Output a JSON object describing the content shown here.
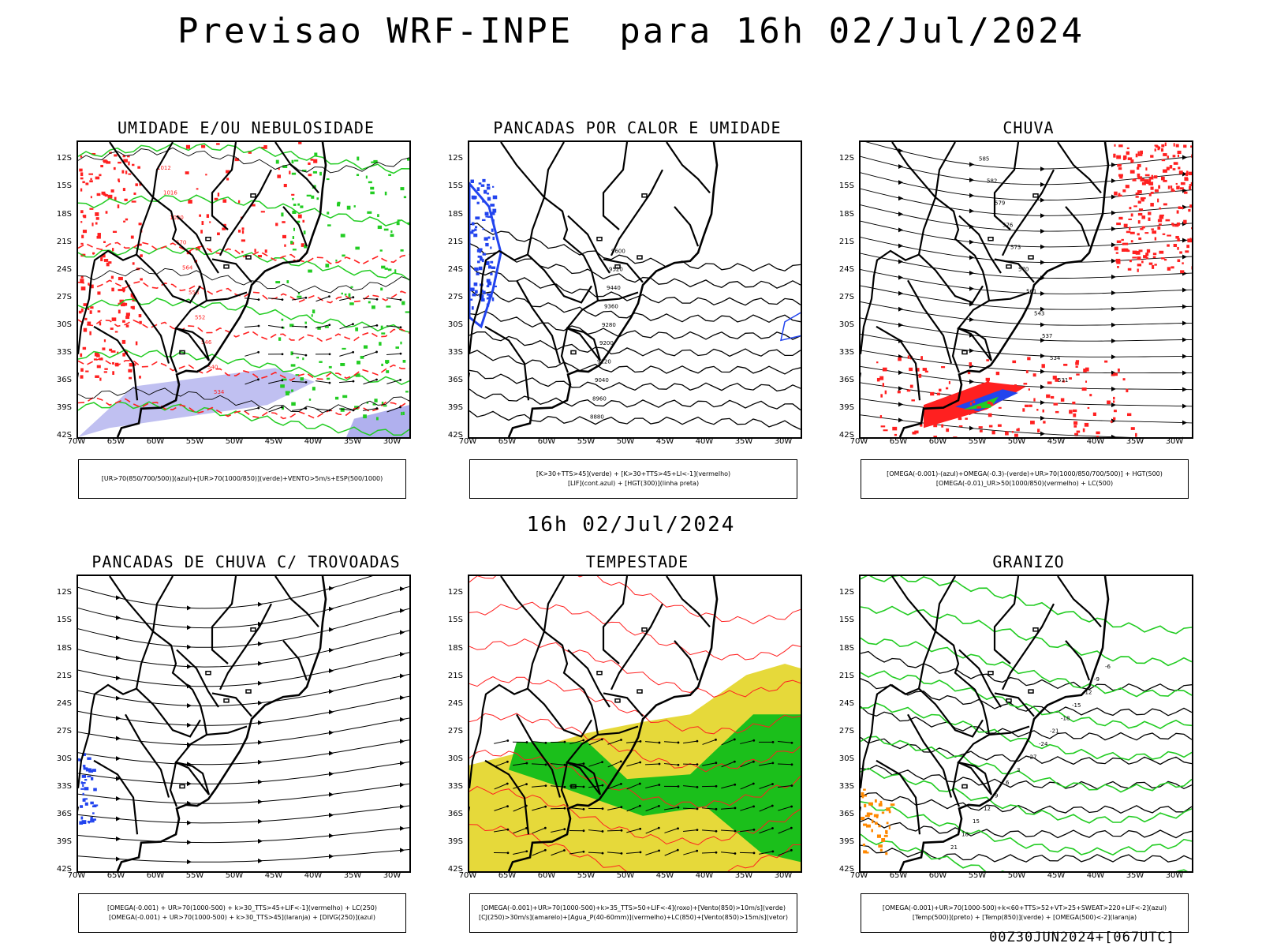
{
  "header": {
    "title": "Previsao WRF-INPE  para 16h 02/Jul/2024"
  },
  "middle": {
    "title": "16h 02/Jul/2024"
  },
  "footer": {
    "run": "00Z30JUN2024+[067UTC]"
  },
  "axes": {
    "lat": [
      "12S",
      "15S",
      "18S",
      "21S",
      "24S",
      "27S",
      "30S",
      "33S",
      "36S",
      "39S",
      "42S"
    ],
    "lon": [
      "70W",
      "65W",
      "60W",
      "55W",
      "50W",
      "45W",
      "40W",
      "35W",
      "30W"
    ]
  },
  "colors": {
    "red": "#ff2020",
    "green": "#22cc22",
    "blue": "#2244ee",
    "yellow": "#e6d93a",
    "orange": "#ff8800",
    "lavender": "#b0b0ee"
  },
  "panels": [
    {
      "title": "UMIDADE E/OU NEBULOSIDADE",
      "legend": [
        "[UR>70(850/700/500)](azul)+[UR>70(1000/850)](verde)+VENTO>5m/s+ESP(500/1000)"
      ],
      "labels": [
        "1012",
        "1016",
        "1020",
        "570",
        "564",
        "558",
        "552",
        "546",
        "540",
        "534"
      ]
    },
    {
      "title": "PANCADAS POR CALOR E UMIDADE",
      "legend": [
        "[K>30+TTS>45](verde) + [K>30+TTS>45+LI<-1](vermelho)",
        "[LIF](cont.azul) + [HGT(300)](linha preta)"
      ],
      "labels": [
        "9600",
        "9520",
        "9440",
        "9360",
        "9280",
        "9200",
        "9120",
        "9040",
        "8960",
        "8880"
      ]
    },
    {
      "title": "CHUVA",
      "legend": [
        "[OMEGA(-0.001)-(azul)+OMEGA(-0.3)-(verde)+UR>70(1000/850/700/500)] + HGT(500)",
        "[OMEGA(-0.01)_UR>50(1000/850)(vermelho) + LC(500)"
      ],
      "labels": [
        "585",
        "582",
        "579",
        "576",
        "573",
        "570",
        "561",
        "543",
        "537",
        "534",
        "531"
      ]
    },
    {
      "title": "PANCADAS DE CHUVA C/ TROVOADAS",
      "legend": [
        "[OMEGA(-0.001) + UR>70(1000-500) + k>30_TTS>45+LIF<-1](vermelho) + LC(250)",
        "[OMEGA(-0.001) + UR>70(1000-500) + k>30_TTS>45](laranja) + [DIVG(250)](azul)"
      ],
      "labels": []
    },
    {
      "title": "TEMPESTADE",
      "legend": [
        "[OMEGA(-0.001)+UR>70(1000-500)+k>35_TTS>50+LIF<-4](roxo)+[Vento(850)>10m/s](verde)",
        "[CJ(250)>30m/s](amarelo)+[Agua_P(40-60mm)](vermelho)+LC(850)+[Vento(850)>15m/s](vetor)"
      ],
      "labels": []
    },
    {
      "title": "GRANIZO",
      "legend": [
        "[OMEGA(-0.001)+UR>70(1000-500)+k<60+TTS>52+VT>25+SWEAT>220+LIF<-2](azul)",
        "[Temp(500)](preto) + [Temp(850)](verde) + [OMEGA(500)<-2](laranja)"
      ],
      "labels": [
        "-6",
        "-9",
        "-12",
        "-15",
        "-18",
        "-21",
        "-24",
        "-27",
        "3",
        "6",
        "9",
        "12",
        "15",
        "18",
        "21"
      ]
    }
  ]
}
